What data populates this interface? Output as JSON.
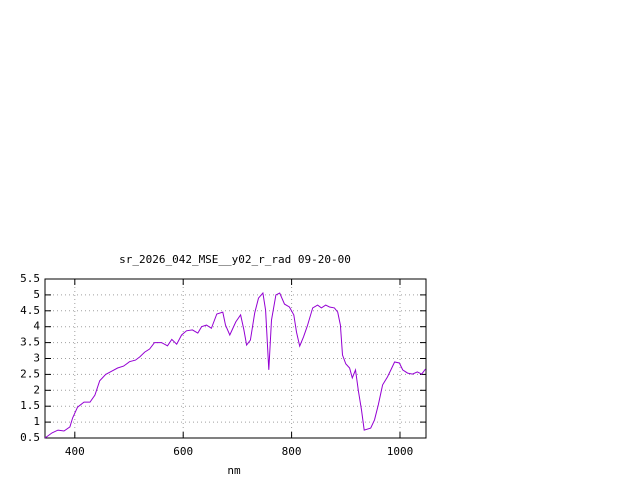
{
  "chart_data": {
    "type": "line",
    "title": "sr_2026_042_MSE__y02_r_rad 09-20-00",
    "x_label": "nm",
    "x": [
      345,
      358,
      369,
      380,
      391,
      396,
      405,
      417,
      428,
      437,
      446,
      457,
      468,
      479,
      490,
      501,
      512,
      520,
      529,
      538,
      547,
      560,
      571,
      579,
      588,
      597,
      606,
      617,
      627,
      634,
      643,
      652,
      662,
      673,
      678,
      686,
      697,
      706,
      712,
      717,
      724,
      732,
      739,
      747,
      752,
      758,
      763,
      771,
      778,
      787,
      796,
      804,
      809,
      815,
      822,
      829,
      839,
      848,
      855,
      863,
      870,
      879,
      885,
      890,
      894,
      900,
      907,
      912,
      918,
      923,
      929,
      934,
      946,
      953,
      960,
      968,
      977,
      984,
      990,
      999,
      1005,
      1014,
      1023,
      1032,
      1040,
      1047
    ],
    "series": [
      {
        "name": "rad",
        "color": "#9400d3",
        "values": [
          0.5,
          0.66,
          0.75,
          0.72,
          0.85,
          1.13,
          1.47,
          1.63,
          1.63,
          1.85,
          2.3,
          2.5,
          2.6,
          2.7,
          2.76,
          2.9,
          2.95,
          3.05,
          3.2,
          3.3,
          3.5,
          3.5,
          3.4,
          3.6,
          3.45,
          3.74,
          3.87,
          3.9,
          3.8,
          4.0,
          4.05,
          3.95,
          4.4,
          4.46,
          4.05,
          3.74,
          4.15,
          4.37,
          3.9,
          3.42,
          3.58,
          4.43,
          4.9,
          5.06,
          4.52,
          2.64,
          4.21,
          5.0,
          5.06,
          4.71,
          4.62,
          4.37,
          3.83,
          3.39,
          3.68,
          4.02,
          4.59,
          4.68,
          4.59,
          4.68,
          4.62,
          4.59,
          4.46,
          4.05,
          3.11,
          2.83,
          2.7,
          2.39,
          2.64,
          2.0,
          1.38,
          0.75,
          0.81,
          1.07,
          1.54,
          2.17,
          2.42,
          2.67,
          2.89,
          2.86,
          2.64,
          2.54,
          2.51,
          2.58,
          2.51,
          2.67
        ]
      }
    ],
    "xlim": [
      345,
      1048
    ],
    "xticks": [
      400,
      600,
      800,
      1000
    ],
    "ylim": [
      0.5,
      5.5
    ],
    "yticks": [
      0.5,
      1,
      1.5,
      2,
      2.5,
      3,
      3.5,
      4,
      4.5,
      5,
      5.5
    ],
    "grid": true
  }
}
